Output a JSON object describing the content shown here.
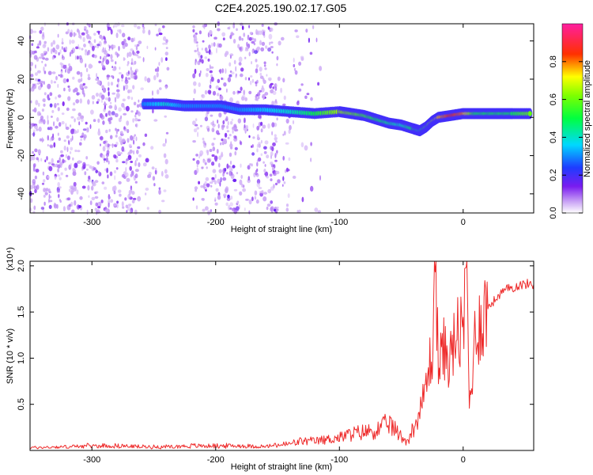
{
  "title": "C2E4.2025.190.02.17.G05",
  "colors": {
    "signal_red": "#ee2a2a",
    "scatter_purple": "#8a2be2",
    "axis": "#000000"
  },
  "chart_data": [
    {
      "type": "heatmap",
      "xlabel": "Height of straight line (km)",
      "ylabel": "Frequency (Hz)",
      "xlim": [
        -350,
        57
      ],
      "ylim": [
        -50,
        49
      ],
      "xticks": [
        -300,
        -200,
        -100,
        0
      ],
      "yticks": [
        -40,
        -20,
        0,
        20,
        40
      ],
      "colorbar": {
        "label": "Normalized spectral amplitude",
        "range": [
          0.0,
          1.0
        ],
        "ticks": [
          "0.0",
          "0.2",
          "0.4",
          "0.6",
          "0.8"
        ],
        "tick_values": [
          0.0,
          0.2,
          0.4,
          0.6,
          0.8
        ],
        "colormap": "rainbow (white-violet-blue-cyan-green-yellow-red-magenta)"
      },
      "ridge": {
        "x": [
          -258,
          -240,
          -225,
          -210,
          -195,
          -180,
          -160,
          -140,
          -120,
          -100,
          -90,
          -80,
          -70,
          -60,
          -50,
          -40,
          -35,
          -30,
          -25,
          -20,
          -10,
          0,
          10,
          20,
          30,
          40,
          55
        ],
        "frequency": [
          7,
          7,
          6,
          6,
          6,
          4,
          4,
          3,
          2,
          3,
          2,
          1,
          -1,
          -3,
          -4,
          -6,
          -7,
          -5,
          -2,
          0,
          1,
          2,
          2,
          2,
          2,
          2,
          2
        ],
        "amplitude": [
          0.3,
          0.4,
          0.3,
          0.3,
          0.3,
          0.3,
          0.35,
          0.4,
          0.5,
          0.65,
          0.6,
          0.55,
          0.5,
          0.45,
          0.4,
          0.5,
          0.45,
          0.55,
          0.65,
          0.75,
          0.85,
          0.8,
          0.5,
          0.5,
          0.5,
          0.5,
          0.6
        ]
      }
    },
    {
      "type": "line",
      "xlabel": "Height of straight line (km)",
      "ylabel": "SNR (10 * v/v)",
      "multiplier": "(x10⁴)",
      "xlim": [
        -350,
        57
      ],
      "ylim": [
        0,
        2.05
      ],
      "xticks": [
        -300,
        -200,
        -100,
        0
      ],
      "yticks": [
        0.5,
        1.0,
        1.5,
        2.0
      ],
      "ytick_labels": [
        "0.5",
        "1.0",
        "1.5",
        "2.0"
      ],
      "series": [
        {
          "x": [
            -350,
            -320,
            -300,
            -280,
            -260,
            -240,
            -220,
            -200,
            -180,
            -160,
            -150,
            -140,
            -130,
            -120,
            -110,
            -100,
            -90,
            -80,
            -70,
            -65,
            -60,
            -55,
            -50,
            -45,
            -40,
            -35,
            -30,
            -25,
            -22,
            -20,
            -15,
            -10,
            -5,
            0,
            3,
            5,
            10,
            15,
            20,
            25,
            30,
            35,
            40,
            45,
            50,
            57
          ],
          "y": [
            0.03,
            0.04,
            0.05,
            0.05,
            0.04,
            0.04,
            0.05,
            0.05,
            0.05,
            0.04,
            0.06,
            0.07,
            0.1,
            0.1,
            0.12,
            0.14,
            0.18,
            0.2,
            0.22,
            0.25,
            0.3,
            0.22,
            0.15,
            0.1,
            0.25,
            0.4,
            0.7,
            1.1,
            2.0,
            0.9,
            1.1,
            1.0,
            1.3,
            1.2,
            2.05,
            0.45,
            1.3,
            1.45,
            1.55,
            1.62,
            1.7,
            1.74,
            1.77,
            1.79,
            1.8,
            1.8
          ]
        }
      ]
    }
  ]
}
